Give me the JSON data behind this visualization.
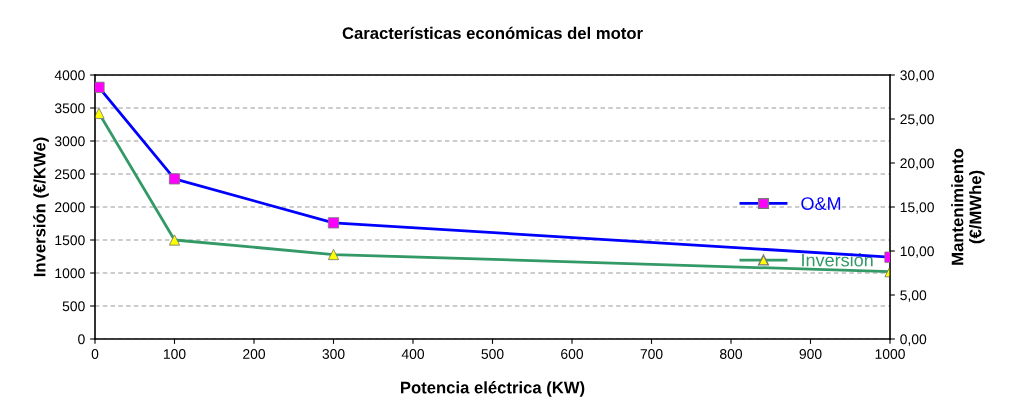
{
  "chart_data": {
    "type": "line",
    "title": "Características económicas del motor",
    "xlabel": "Potencia eléctrica (KW)",
    "ylabel": "Inversión (€/KWe)",
    "y2label": "Mantenimiento\n(€/MWhe)",
    "x": [
      5,
      100,
      300,
      1000
    ],
    "series": [
      {
        "name": "O&M",
        "color": "#0000ff",
        "colors": [
          "#ff00ff",
          "#ff00ff",
          "#ff00ff",
          "#ff00ff"
        ],
        "marker": "square",
        "axis": "y2",
        "values": [
          28.6,
          18.2,
          13.2,
          9.3
        ]
      },
      {
        "name": "Inversión",
        "color": "#339966",
        "colors": [
          "#ffff00",
          "#ffff00",
          "#ffff00",
          "#ffff00"
        ],
        "marker": "triangle",
        "values": [
          3420,
          1500,
          1280,
          1020
        ]
      }
    ],
    "xlim": [
      0,
      1000
    ],
    "xticks": [
      0,
      100,
      200,
      300,
      400,
      500,
      600,
      700,
      800,
      900,
      1000
    ],
    "ylim": [
      0,
      4000
    ],
    "yticks": [
      0,
      500,
      1000,
      1500,
      2000,
      2500,
      3000,
      3500,
      4000
    ],
    "y2lim": [
      0,
      30
    ],
    "y2ticks": [
      {
        "value": 0,
        "label": "0,00"
      },
      {
        "value": 5,
        "label": "5,00"
      },
      {
        "value": 10,
        "label": "10,00"
      },
      {
        "value": 15,
        "label": "15,00"
      },
      {
        "value": 20,
        "label": "20,00"
      },
      {
        "value": 25,
        "label": "25,00"
      },
      {
        "value": 30,
        "label": "30,00"
      }
    ],
    "grid": "y",
    "legend": "right",
    "line_style": "solid"
  }
}
